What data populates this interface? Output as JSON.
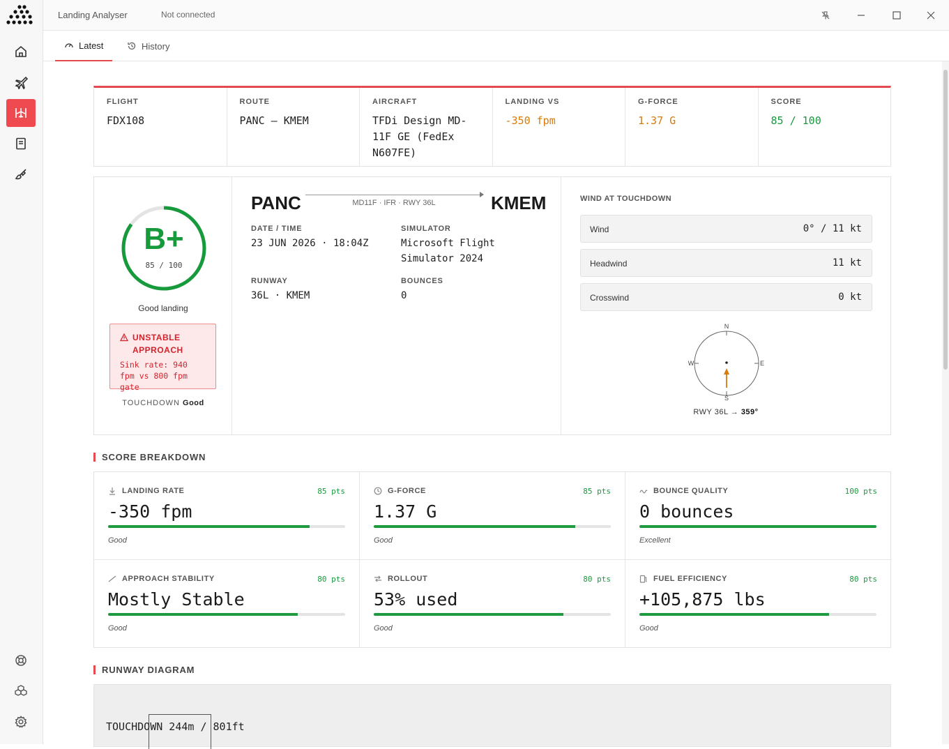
{
  "app": {
    "title": "Landing Analyser",
    "connection": "Not connected"
  },
  "tabs": [
    {
      "label": "Latest"
    },
    {
      "label": "History"
    }
  ],
  "summary": {
    "flight": {
      "label": "FLIGHT",
      "value": "FDX108"
    },
    "route": {
      "label": "ROUTE",
      "value": "PANC — KMEM"
    },
    "aircraft": {
      "label": "AIRCRAFT",
      "value": "TFDi Design MD-11F GE (FedEx N607FE)"
    },
    "landing_vs": {
      "label": "LANDING VS",
      "value": "-350 fpm"
    },
    "gforce": {
      "label": "G-FORCE",
      "value": "1.37 G"
    },
    "score": {
      "label": "SCORE",
      "value": "85 / 100"
    }
  },
  "grade": {
    "letter": "B+",
    "score": "85 / 100",
    "score_fraction": 0.85,
    "verdict": "Good landing",
    "alert_title": "UNSTABLE APPROACH",
    "alert_body": "Sink rate: 940 fpm vs 800 fpm gate",
    "touchdown_label": "TOUCHDOWN",
    "touchdown_value": "Good"
  },
  "flight_info": {
    "origin": "PANC",
    "destination": "KMEM",
    "route_sub": "MD11F · IFR · RWY 36L",
    "date_label": "DATE / TIME",
    "date_value": "23 JUN 2026 · 18:04Z",
    "sim_label": "SIMULATOR",
    "sim_value": "Microsoft Flight Simulator 2024",
    "runway_label": "RUNWAY",
    "runway_value": "36L · KMEM",
    "bounces_label": "BOUNCES",
    "bounces_value": "0"
  },
  "wind": {
    "title": "WIND AT TOUCHDOWN",
    "rows": [
      {
        "label": "Wind",
        "value": "0° / 11 kt"
      },
      {
        "label": "Headwind",
        "value": "11 kt"
      },
      {
        "label": "Crosswind",
        "value": "0 kt"
      }
    ],
    "compass": {
      "n": "N",
      "e": "E",
      "s": "S",
      "w": "W"
    },
    "runway_heading_prefix": "RWY 36L →",
    "runway_heading_value": "359°"
  },
  "breakdown": {
    "title": "SCORE BREAKDOWN",
    "items": [
      {
        "label": "LANDING RATE",
        "icon": "arrow-down-icon",
        "pts": "85 pts",
        "value": "-350 fpm",
        "fill": 0.85,
        "rating": "Good"
      },
      {
        "label": "G-FORCE",
        "icon": "clock-icon",
        "pts": "85 pts",
        "value": "1.37 G",
        "fill": 0.85,
        "rating": "Good"
      },
      {
        "label": "BOUNCE QUALITY",
        "icon": "wave-icon",
        "pts": "100 pts",
        "value": "0 bounces",
        "fill": 1.0,
        "rating": "Excellent"
      },
      {
        "label": "APPROACH STABILITY",
        "icon": "slope-icon",
        "pts": "80 pts",
        "value": "Mostly Stable",
        "fill": 0.8,
        "rating": "Good"
      },
      {
        "label": "ROLLOUT",
        "icon": "arrows-icon",
        "pts": "80 pts",
        "value": "53% used",
        "fill": 0.8,
        "rating": "Good"
      },
      {
        "label": "FUEL EFFICIENCY",
        "icon": "fuel-icon",
        "pts": "80 pts",
        "value": "+105,875 lbs",
        "fill": 0.8,
        "rating": "Good"
      }
    ]
  },
  "runway_diagram": {
    "title": "RUNWAY DIAGRAM",
    "touchdown_text": "TOUCHDOWN 244m / 801ft"
  },
  "colors": {
    "accent": "#e44a4f",
    "good": "#179a3c",
    "warn": "#d97a0b",
    "alert": "#d3232d"
  }
}
